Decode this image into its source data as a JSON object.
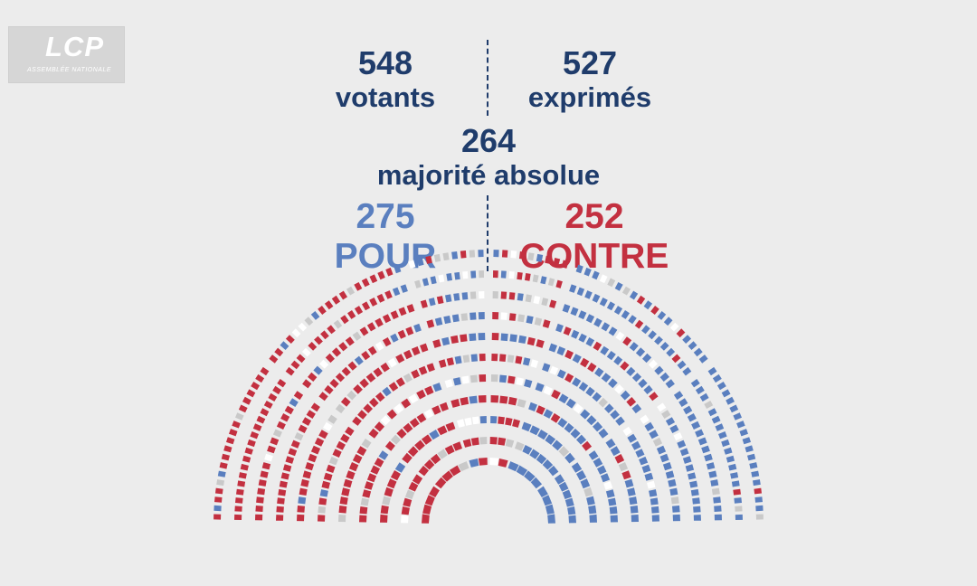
{
  "logo": {
    "name": "LCP",
    "subtitle": "ASSEMBLÉE NATIONALE"
  },
  "votants": {
    "value": "548",
    "label": "votants"
  },
  "exprimes": {
    "value": "527",
    "label": "exprimés"
  },
  "majorite": {
    "value": "264",
    "label": "majorité absolue"
  },
  "pour": {
    "value": "275",
    "label": "POUR"
  },
  "contre": {
    "value": "252",
    "label": "CONTRE"
  },
  "colors": {
    "title": "#1f3c6b",
    "pour": "#5a7fbf",
    "contre": "#c33040",
    "abstention": "#c9c9c9",
    "empty": "#ffffff",
    "background": "#ececec"
  }
}
